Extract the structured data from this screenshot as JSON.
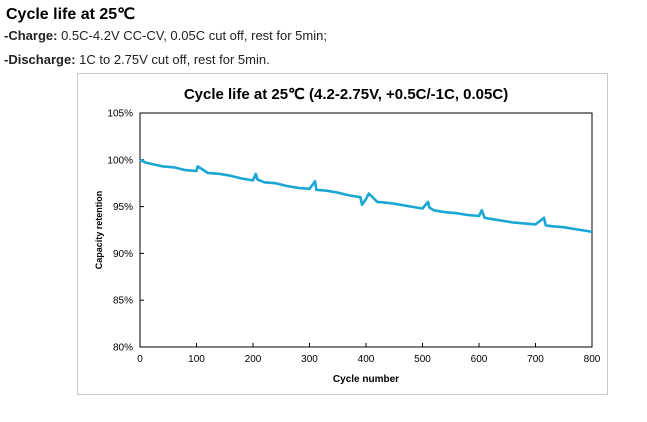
{
  "page": {
    "heading": "Cycle life at 25℃",
    "charge_key": "-Charge:",
    "charge_text": "0.5C-4.2V CC-CV, 0.05C cut off, rest for 5min;",
    "discharge_key": "-Discharge:",
    "discharge_text": "1C to 2.75V cut off, rest for 5min."
  },
  "chart_data": {
    "type": "line",
    "title": "Cycle life at 25℃ (4.2-2.75V, +0.5C/-1C, 0.05C)",
    "xlabel": "Cycle number",
    "ylabel": "Capacity retention",
    "xlim": [
      0,
      800
    ],
    "ylim": [
      80,
      105
    ],
    "xticks": [
      "0",
      "100",
      "200",
      "300",
      "400",
      "500",
      "600",
      "700",
      "800"
    ],
    "yticks": [
      "80%",
      "85%",
      "90%",
      "95%",
      "100%",
      "105%"
    ],
    "grid": false,
    "legend": "none",
    "color": "#1aa7d4",
    "series": [
      {
        "x": [
          0,
          10,
          25,
          40,
          60,
          80,
          100,
          102,
          120,
          140,
          160,
          180,
          200,
          205,
          208,
          220,
          240,
          260,
          280,
          300,
          310,
          312,
          330,
          350,
          370,
          390,
          393,
          400,
          405,
          420,
          440,
          460,
          480,
          500,
          510,
          512,
          520,
          540,
          560,
          580,
          600,
          605,
          610,
          620,
          640,
          660,
          680,
          700,
          715,
          718,
          730,
          750,
          770,
          790,
          800
        ],
        "y": [
          100.0,
          99.7,
          99.5,
          99.3,
          99.2,
          98.9,
          98.8,
          99.3,
          98.6,
          98.5,
          98.3,
          98.0,
          97.8,
          98.5,
          97.9,
          97.6,
          97.5,
          97.2,
          97.0,
          96.9,
          97.7,
          96.8,
          96.7,
          96.5,
          96.2,
          96.0,
          95.2,
          95.8,
          96.4,
          95.5,
          95.4,
          95.2,
          95.0,
          94.8,
          95.5,
          94.9,
          94.6,
          94.4,
          94.3,
          94.1,
          94.0,
          94.6,
          93.8,
          93.7,
          93.5,
          93.3,
          93.2,
          93.1,
          93.8,
          93.0,
          92.9,
          92.8,
          92.6,
          92.4,
          92.3
        ]
      }
    ]
  }
}
